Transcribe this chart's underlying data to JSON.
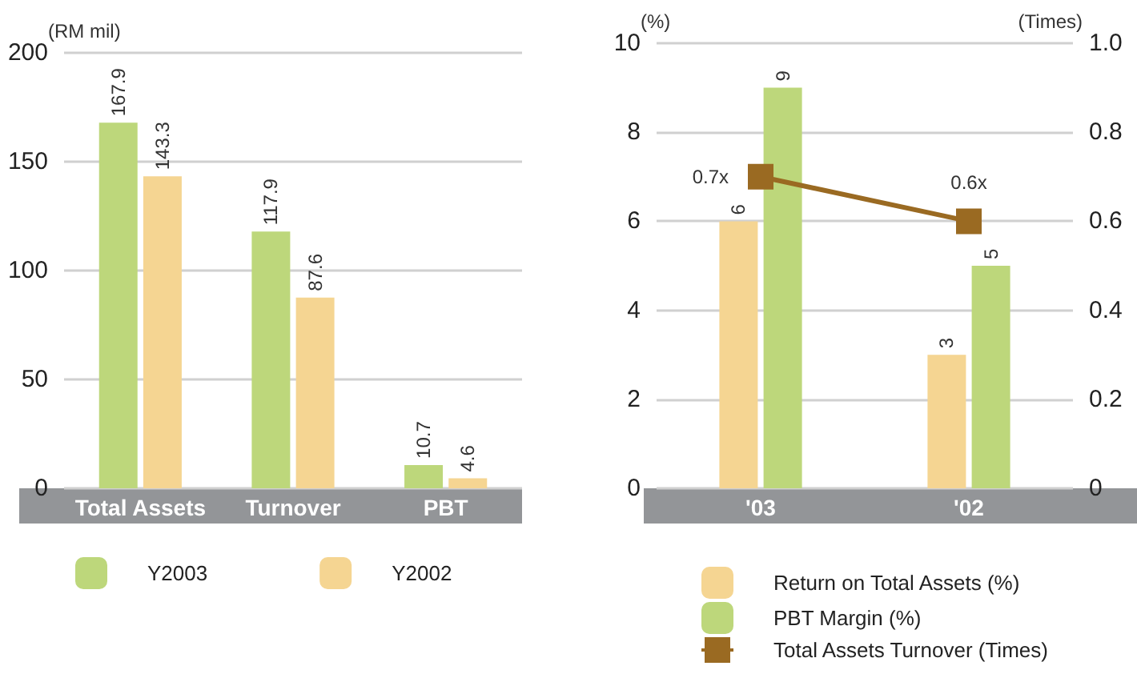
{
  "chart_data": [
    {
      "type": "bar",
      "ylabel": "(RM mil)",
      "categories": [
        "Total Assets",
        "Turnover",
        "PBT"
      ],
      "series": [
        {
          "name": "Y2003",
          "color": "#bdd77b",
          "values": [
            167.9,
            117.9,
            10.7
          ]
        },
        {
          "name": "Y2002",
          "color": "#f5d592",
          "values": [
            143.3,
            87.6,
            4.6
          ]
        }
      ],
      "ylim": [
        0,
        200
      ],
      "yticks": [
        0,
        50,
        100,
        150,
        200
      ],
      "grid": "y",
      "data_labels": true,
      "legend": "bottom"
    },
    {
      "type": "bar",
      "ylabel": "(%)",
      "y2label": "(Times)",
      "categories": [
        "'03",
        "'02"
      ],
      "series": [
        {
          "name": "Return on Total Assets (%)",
          "color": "#f5d592",
          "values": [
            6,
            3
          ]
        },
        {
          "name": "PBT Margin (%)",
          "color": "#bdd77b",
          "values": [
            9,
            5
          ]
        },
        {
          "name": "Total Assets Turnover (Times)",
          "type": "line",
          "axis": "y2",
          "color": "#9a6a22",
          "values": [
            0.7,
            0.6
          ],
          "value_labels": [
            "0.7x",
            "0.6x"
          ],
          "marker": "square"
        }
      ],
      "ylim": [
        0,
        10
      ],
      "yticks": [
        0,
        2,
        4,
        6,
        8,
        10
      ],
      "y2lim": [
        0,
        1
      ],
      "y2ticks": [
        0,
        0.2,
        0.4,
        0.6,
        0.8,
        {
          "value": 1,
          "label": "1.0"
        }
      ],
      "grid": "y",
      "data_labels": true,
      "legend": "bottom"
    }
  ]
}
